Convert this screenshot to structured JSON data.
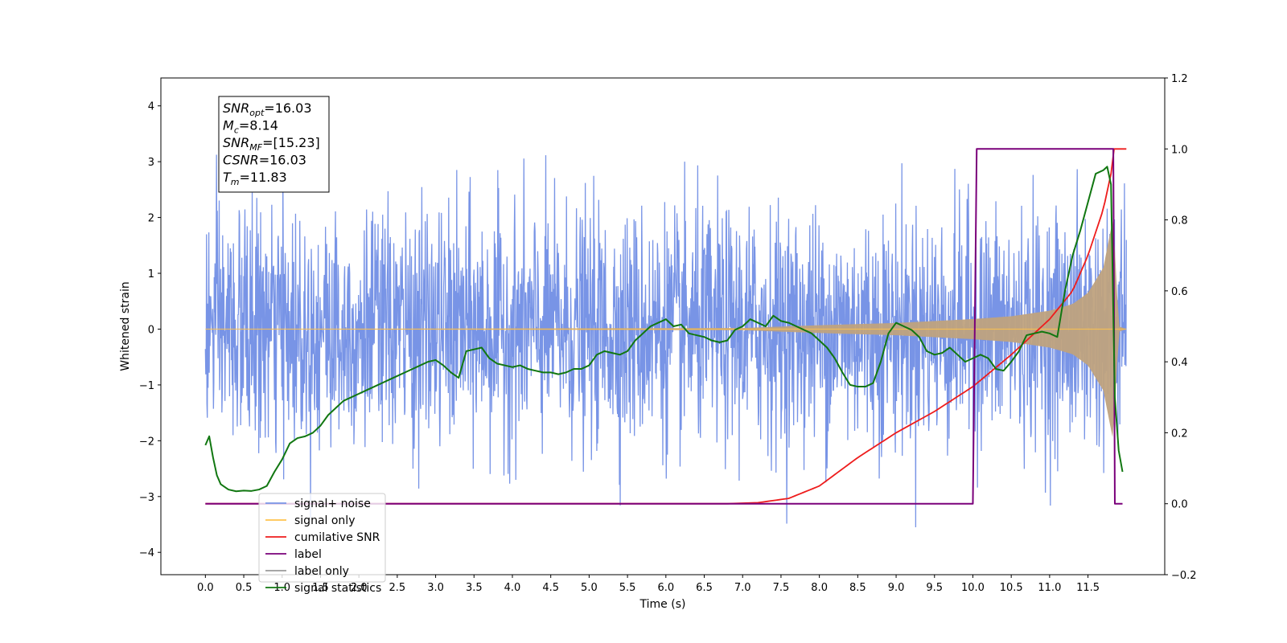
{
  "chart_data": {
    "type": "line",
    "title": "",
    "xlabel": "Time (s)",
    "ylabel": "Whitened strain",
    "ylabel_right": "",
    "xlim": [
      -0.58,
      12.5
    ],
    "ylim": [
      -4.4,
      4.5
    ],
    "ylim_right": [
      -0.2,
      1.2
    ],
    "xticks": [
      0.0,
      0.5,
      1.0,
      1.5,
      2.0,
      2.5,
      3.0,
      3.5,
      4.0,
      4.5,
      5.0,
      5.5,
      6.0,
      6.5,
      7.0,
      7.5,
      8.0,
      8.5,
      9.0,
      9.5,
      10.0,
      10.5,
      11.0,
      11.5
    ],
    "xtick_labels": [
      "0.0",
      "0.5",
      "1.0",
      "1.5",
      "2.0",
      "2.5",
      "3.0",
      "3.5",
      "4.0",
      "4.5",
      "5.0",
      "5.5",
      "6.0",
      "6.5",
      "7.0",
      "7.5",
      "8.0",
      "8.5",
      "9.0",
      "9.5",
      "10.0",
      "10.5",
      "11.0",
      "11.5"
    ],
    "yticks": [
      -4,
      -3,
      -2,
      -1,
      0,
      1,
      2,
      3,
      4
    ],
    "ytick_labels": [
      "−4",
      "−3",
      "−2",
      "−1",
      "0",
      "1",
      "2",
      "3",
      "4"
    ],
    "yticks_right": [
      -0.2,
      0.0,
      0.2,
      0.4,
      0.6,
      0.8,
      1.0,
      1.2
    ],
    "ytick_labels_right": [
      "−0.2",
      "0.0",
      "0.2",
      "0.4",
      "0.6",
      "0.8",
      "1.0",
      "1.2"
    ],
    "grid": false,
    "legend_position": "lower-left",
    "annotation": {
      "lines": [
        {
          "sym": "SNR",
          "sub": "opt",
          "val": "=16.03"
        },
        {
          "sym": "M",
          "sub": "c",
          "val": "=8.14"
        },
        {
          "sym": "SNR",
          "sub": "MF",
          "val": "=[15.23]"
        },
        {
          "sym": "CSNR",
          "sub": "",
          "val": "=16.03"
        },
        {
          "sym": "T",
          "sub": "m",
          "val": "=11.83"
        }
      ]
    },
    "series": [
      {
        "name": "signal+ noise",
        "color": "#7894e6",
        "axis": "left",
        "noise": {
          "x_start": 0.0,
          "x_end": 12.0,
          "sigma": 1.0,
          "max_excursion": 4.15,
          "min_excursion": -3.8
        }
      },
      {
        "name": "signal only",
        "color": "#ffc34d",
        "band_color": "#bfa27e",
        "axis": "left",
        "chirp_envelope": {
          "x": [
            0.0,
            7.0,
            8.0,
            9.0,
            10.0,
            10.5,
            11.0,
            11.3,
            11.5,
            11.7,
            11.8,
            11.83,
            11.9,
            12.0
          ],
          "amplitude": [
            0.0,
            0.02,
            0.07,
            0.11,
            0.18,
            0.23,
            0.33,
            0.45,
            0.65,
            1.1,
            1.8,
            2.0,
            0.05,
            0.0
          ]
        }
      },
      {
        "name": "cumilative SNR",
        "color": "#ee1c1c",
        "axis": "right",
        "x": [
          0.0,
          6.8,
          7.2,
          7.6,
          8.0,
          8.5,
          9.0,
          9.5,
          10.0,
          10.5,
          11.0,
          11.3,
          11.5,
          11.7,
          11.83,
          11.84,
          12.0
        ],
        "values": [
          0.0,
          0.0,
          0.003,
          0.015,
          0.05,
          0.13,
          0.2,
          0.26,
          0.33,
          0.42,
          0.52,
          0.6,
          0.7,
          0.83,
          0.96,
          1.0,
          1.0
        ]
      },
      {
        "name": "label",
        "color": "#7a007a",
        "axis": "right",
        "x": [
          0.0,
          10.0,
          10.05,
          11.83,
          11.85,
          11.95
        ],
        "values": [
          0.0,
          0.0,
          1.0,
          1.0,
          0.0,
          0.0
        ]
      },
      {
        "name": "label only",
        "color": "#9a9a9a",
        "axis": "right",
        "legend_only": true
      },
      {
        "name": "signal statistics",
        "color": "#117711",
        "axis": "right",
        "x": [
          0.0,
          0.05,
          0.1,
          0.15,
          0.2,
          0.3,
          0.4,
          0.5,
          0.6,
          0.7,
          0.8,
          0.9,
          1.0,
          1.1,
          1.2,
          1.3,
          1.4,
          1.5,
          1.6,
          1.7,
          1.8,
          1.9,
          2.0,
          2.1,
          2.2,
          2.3,
          2.4,
          2.5,
          2.6,
          2.7,
          2.8,
          2.9,
          3.0,
          3.1,
          3.2,
          3.3,
          3.4,
          3.5,
          3.6,
          3.7,
          3.8,
          3.9,
          4.0,
          4.1,
          4.2,
          4.3,
          4.4,
          4.5,
          4.6,
          4.7,
          4.8,
          4.9,
          5.0,
          5.1,
          5.2,
          5.3,
          5.4,
          5.5,
          5.6,
          5.7,
          5.8,
          5.9,
          6.0,
          6.1,
          6.2,
          6.3,
          6.4,
          6.5,
          6.6,
          6.7,
          6.8,
          6.9,
          7.0,
          7.1,
          7.2,
          7.3,
          7.4,
          7.5,
          7.6,
          7.7,
          7.8,
          7.9,
          8.0,
          8.1,
          8.2,
          8.3,
          8.4,
          8.5,
          8.6,
          8.7,
          8.8,
          8.9,
          9.0,
          9.1,
          9.2,
          9.3,
          9.4,
          9.5,
          9.6,
          9.7,
          9.8,
          9.9,
          10.0,
          10.1,
          10.2,
          10.3,
          10.4,
          10.5,
          10.6,
          10.7,
          10.8,
          10.9,
          11.0,
          11.1,
          11.2,
          11.3,
          11.4,
          11.5,
          11.6,
          11.7,
          11.75,
          11.8,
          11.85,
          11.9,
          11.95
        ],
        "values": [
          0.165,
          0.19,
          0.13,
          0.08,
          0.055,
          0.04,
          0.035,
          0.037,
          0.036,
          0.04,
          0.05,
          0.09,
          0.125,
          0.17,
          0.185,
          0.19,
          0.2,
          0.22,
          0.25,
          0.27,
          0.29,
          0.3,
          0.31,
          0.32,
          0.33,
          0.34,
          0.35,
          0.36,
          0.37,
          0.38,
          0.39,
          0.4,
          0.405,
          0.39,
          0.37,
          0.355,
          0.43,
          0.435,
          0.44,
          0.41,
          0.395,
          0.39,
          0.385,
          0.39,
          0.38,
          0.375,
          0.37,
          0.37,
          0.365,
          0.37,
          0.38,
          0.38,
          0.39,
          0.42,
          0.43,
          0.425,
          0.42,
          0.43,
          0.46,
          0.48,
          0.5,
          0.51,
          0.52,
          0.5,
          0.505,
          0.48,
          0.475,
          0.47,
          0.46,
          0.455,
          0.46,
          0.49,
          0.5,
          0.52,
          0.51,
          0.5,
          0.53,
          0.515,
          0.51,
          0.5,
          0.49,
          0.48,
          0.46,
          0.44,
          0.41,
          0.37,
          0.335,
          0.33,
          0.33,
          0.34,
          0.4,
          0.48,
          0.51,
          0.5,
          0.49,
          0.47,
          0.43,
          0.42,
          0.425,
          0.44,
          0.42,
          0.4,
          0.41,
          0.42,
          0.41,
          0.38,
          0.375,
          0.4,
          0.43,
          0.475,
          0.48,
          0.485,
          0.48,
          0.47,
          0.6,
          0.7,
          0.77,
          0.85,
          0.93,
          0.94,
          0.95,
          0.9,
          0.3,
          0.15,
          0.09
        ]
      }
    ]
  }
}
